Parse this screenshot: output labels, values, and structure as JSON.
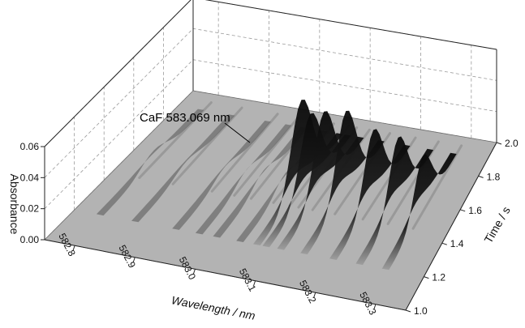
{
  "chart_data": {
    "type": "surface3d",
    "xlabel": "Wavelength / nm",
    "ylabel": "Time / s",
    "zlabel": "Absorbance",
    "xlim": [
      582.75,
      583.35
    ],
    "ylim": [
      1.0,
      2.0
    ],
    "zlim": [
      0.0,
      0.06
    ],
    "x_ticks": [
      "582.8",
      "582.9",
      "583.0",
      "583.1",
      "583.2",
      "583.3"
    ],
    "y_ticks": [
      "1.0",
      "1.2",
      "1.4",
      "1.6",
      "1.8",
      "2.0"
    ],
    "z_ticks": [
      "0.00",
      "0.02",
      "0.04",
      "0.06"
    ],
    "grid": true,
    "annotation": {
      "text": "CaF 583.069 nm",
      "x": 583.069,
      "z": 0.058
    },
    "peaks": [
      {
        "x": 582.8,
        "z": 0.008
      },
      {
        "x": 582.86,
        "z": 0.005
      },
      {
        "x": 582.93,
        "z": 0.006
      },
      {
        "x": 582.97,
        "z": 0.007
      },
      {
        "x": 583.0,
        "z": 0.008
      },
      {
        "x": 583.04,
        "z": 0.009
      },
      {
        "x": 583.069,
        "z": 0.058
      },
      {
        "x": 583.085,
        "z": 0.05
      },
      {
        "x": 583.11,
        "z": 0.053
      },
      {
        "x": 583.15,
        "z": 0.056
      },
      {
        "x": 583.2,
        "z": 0.047
      },
      {
        "x": 583.245,
        "z": 0.045
      },
      {
        "x": 583.29,
        "z": 0.036
      }
    ]
  }
}
